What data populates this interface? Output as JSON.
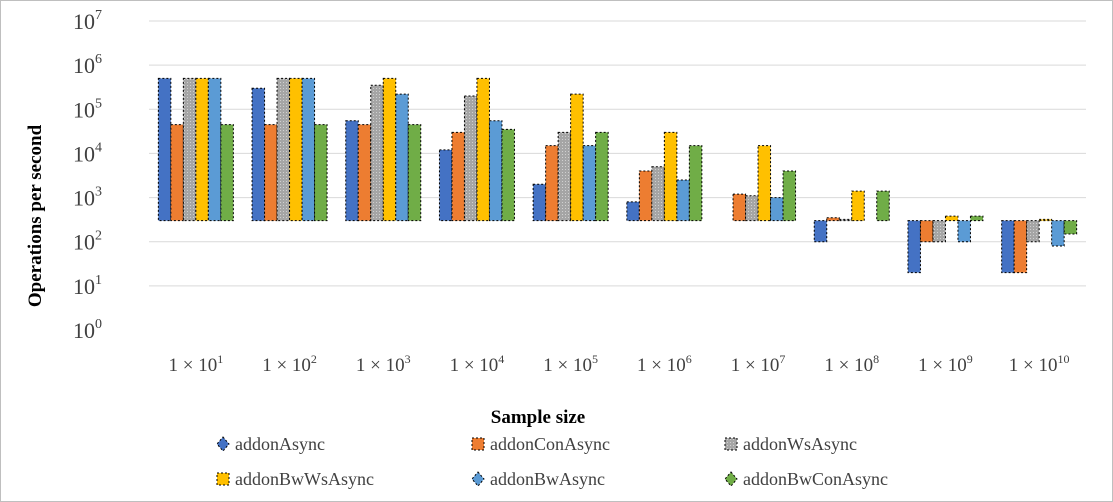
{
  "chart_data": {
    "type": "bar",
    "title": "",
    "xlabel": "Sample size",
    "ylabel": "Operations per second",
    "y_scale": "log",
    "ylim": [
      1,
      10000000
    ],
    "baseline": 300,
    "grid": true,
    "legend_position": "bottom",
    "y_ticks": [
      {
        "base": "10",
        "exp": "0",
        "value": 1
      },
      {
        "base": "10",
        "exp": "1",
        "value": 10
      },
      {
        "base": "10",
        "exp": "2",
        "value": 100
      },
      {
        "base": "10",
        "exp": "3",
        "value": 1000
      },
      {
        "base": "10",
        "exp": "4",
        "value": 10000
      },
      {
        "base": "10",
        "exp": "5",
        "value": 100000
      },
      {
        "base": "10",
        "exp": "6",
        "value": 1000000
      },
      {
        "base": "10",
        "exp": "7",
        "value": 10000000
      }
    ],
    "categories": [
      {
        "prefix": "1 × 10",
        "exp": "1"
      },
      {
        "prefix": "1 × 10",
        "exp": "2"
      },
      {
        "prefix": "1 × 10",
        "exp": "3"
      },
      {
        "prefix": "1 × 10",
        "exp": "4"
      },
      {
        "prefix": "1 × 10",
        "exp": "5"
      },
      {
        "prefix": "1 × 10",
        "exp": "6"
      },
      {
        "prefix": "1 × 10",
        "exp": "7"
      },
      {
        "prefix": "1 × 10",
        "exp": "8"
      },
      {
        "prefix": "1 × 10",
        "exp": "9"
      },
      {
        "prefix": "1 × 10",
        "exp": "10"
      }
    ],
    "series": [
      {
        "name": "addonAsync",
        "color": "#4472c4",
        "marker": "diamond",
        "values": [
          500000,
          300000,
          55000,
          12000,
          2000,
          800,
          null,
          100,
          20,
          20
        ]
      },
      {
        "name": "addonConAsync",
        "color": "#ed7d31",
        "marker": "square",
        "values": [
          45000,
          45000,
          45000,
          30000,
          15000,
          4000,
          1200,
          350,
          100,
          20
        ]
      },
      {
        "name": "addonWsAsync",
        "color": "#a5a5a5",
        "marker": "square",
        "values": [
          500000,
          500000,
          350000,
          200000,
          30000,
          5000,
          1100,
          320,
          100,
          100
        ]
      },
      {
        "name": "addonBwWsAsync",
        "color": "#ffc000",
        "marker": "square",
        "values": [
          500000,
          500000,
          500000,
          500000,
          220000,
          30000,
          15000,
          1400,
          380,
          320
        ]
      },
      {
        "name": "addonBwAsync",
        "color": "#5b9bd5",
        "marker": "diamond",
        "values": [
          500000,
          500000,
          220000,
          55000,
          15000,
          2500,
          1000,
          null,
          100,
          80
        ]
      },
      {
        "name": "addonBwConAsync",
        "color": "#70ad47",
        "marker": "diamond",
        "values": [
          45000,
          45000,
          45000,
          35000,
          30000,
          15000,
          4000,
          1400,
          380,
          150
        ]
      }
    ]
  }
}
